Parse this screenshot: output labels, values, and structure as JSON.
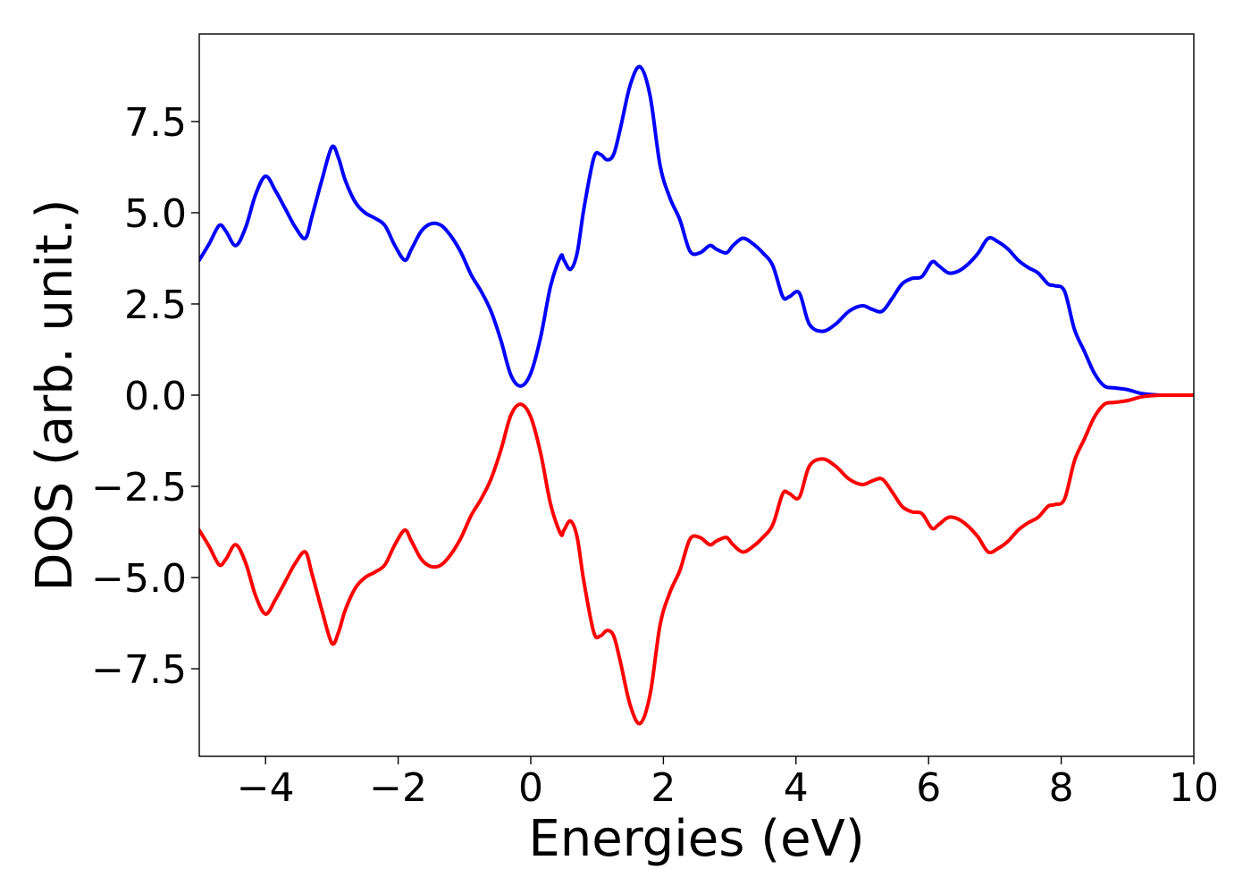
{
  "chart_data": {
    "type": "line",
    "title": "",
    "xlabel": "Energies (eV)",
    "ylabel": "DOS (arb. unit.)",
    "xlim": [
      -5,
      10
    ],
    "ylim": [
      -9.9,
      9.9
    ],
    "x_ticks": [
      -4,
      -2,
      0,
      2,
      4,
      6,
      8,
      10
    ],
    "x_tick_labels": [
      "−4",
      "−2",
      "0",
      "2",
      "4",
      "6",
      "8",
      "10"
    ],
    "y_ticks": [
      -7.5,
      -5.0,
      -2.5,
      0.0,
      2.5,
      5.0,
      7.5
    ],
    "y_tick_labels": [
      "−7.5",
      "−5.0",
      "−2.5",
      "0.0",
      "2.5",
      "5.0",
      "7.5"
    ],
    "grid": false,
    "legend": "none",
    "series": [
      {
        "color": "#0000ff",
        "x": [
          -5.0,
          -4.85,
          -4.7,
          -4.6,
          -4.45,
          -4.3,
          -4.15,
          -4.0,
          -3.85,
          -3.7,
          -3.55,
          -3.4,
          -3.3,
          -3.15,
          -3.0,
          -2.9,
          -2.8,
          -2.65,
          -2.5,
          -2.35,
          -2.2,
          -2.05,
          -1.9,
          -1.8,
          -1.65,
          -1.5,
          -1.35,
          -1.2,
          -1.05,
          -0.9,
          -0.75,
          -0.6,
          -0.45,
          -0.3,
          -0.15,
          0.0,
          0.15,
          0.3,
          0.45,
          0.5,
          0.6,
          0.7,
          0.8,
          0.95,
          1.05,
          1.15,
          1.25,
          1.35,
          1.5,
          1.65,
          1.8,
          1.95,
          2.1,
          2.25,
          2.4,
          2.55,
          2.7,
          2.8,
          2.95,
          3.05,
          3.2,
          3.35,
          3.5,
          3.65,
          3.8,
          3.9,
          4.05,
          4.2,
          4.4,
          4.6,
          4.8,
          5.0,
          5.15,
          5.3,
          5.45,
          5.6,
          5.75,
          5.9,
          6.05,
          6.15,
          6.3,
          6.45,
          6.6,
          6.75,
          6.9,
          7.05,
          7.2,
          7.35,
          7.5,
          7.65,
          7.8,
          7.9,
          8.05,
          8.2,
          8.35,
          8.5,
          8.65,
          8.8,
          9.0,
          9.2,
          9.4,
          9.6,
          9.8,
          10.0
        ],
        "y": [
          3.7,
          4.15,
          4.65,
          4.5,
          4.1,
          4.6,
          5.5,
          6.0,
          5.6,
          5.1,
          4.6,
          4.3,
          4.9,
          5.9,
          6.8,
          6.5,
          5.9,
          5.3,
          5.0,
          4.85,
          4.65,
          4.1,
          3.7,
          4.0,
          4.5,
          4.7,
          4.65,
          4.35,
          3.9,
          3.3,
          2.85,
          2.3,
          1.5,
          0.55,
          0.25,
          0.6,
          1.6,
          3.0,
          3.8,
          3.7,
          3.45,
          3.9,
          5.1,
          6.5,
          6.6,
          6.45,
          6.6,
          7.3,
          8.5,
          9.0,
          8.2,
          6.3,
          5.4,
          4.8,
          3.95,
          3.9,
          4.1,
          4.0,
          3.9,
          4.1,
          4.3,
          4.15,
          3.9,
          3.55,
          2.7,
          2.7,
          2.8,
          1.95,
          1.75,
          1.95,
          2.3,
          2.45,
          2.35,
          2.3,
          2.65,
          3.05,
          3.2,
          3.25,
          3.65,
          3.55,
          3.35,
          3.4,
          3.6,
          3.9,
          4.3,
          4.2,
          4.0,
          3.7,
          3.5,
          3.35,
          3.05,
          3.0,
          2.85,
          1.8,
          1.2,
          0.6,
          0.25,
          0.2,
          0.15,
          0.05,
          0.01,
          0.0,
          0.0,
          0.0
        ]
      },
      {
        "color": "#ff0000",
        "x": [
          -5.0,
          -4.85,
          -4.7,
          -4.6,
          -4.45,
          -4.3,
          -4.15,
          -4.0,
          -3.85,
          -3.7,
          -3.55,
          -3.4,
          -3.3,
          -3.15,
          -3.0,
          -2.9,
          -2.8,
          -2.65,
          -2.5,
          -2.35,
          -2.2,
          -2.05,
          -1.9,
          -1.8,
          -1.65,
          -1.5,
          -1.35,
          -1.2,
          -1.05,
          -0.9,
          -0.75,
          -0.6,
          -0.45,
          -0.3,
          -0.15,
          0.0,
          0.15,
          0.3,
          0.45,
          0.5,
          0.6,
          0.7,
          0.8,
          0.95,
          1.05,
          1.15,
          1.25,
          1.35,
          1.5,
          1.65,
          1.8,
          1.95,
          2.1,
          2.25,
          2.4,
          2.55,
          2.7,
          2.8,
          2.95,
          3.05,
          3.2,
          3.35,
          3.5,
          3.65,
          3.8,
          3.9,
          4.05,
          4.2,
          4.4,
          4.6,
          4.8,
          5.0,
          5.15,
          5.3,
          5.45,
          5.6,
          5.75,
          5.9,
          6.05,
          6.15,
          6.3,
          6.45,
          6.6,
          6.75,
          6.9,
          7.05,
          7.2,
          7.35,
          7.5,
          7.65,
          7.8,
          7.9,
          8.05,
          8.2,
          8.35,
          8.5,
          8.65,
          8.8,
          9.0,
          9.2,
          9.4,
          9.6,
          9.8,
          10.0
        ],
        "y": [
          -3.7,
          -4.15,
          -4.65,
          -4.5,
          -4.1,
          -4.6,
          -5.5,
          -6.0,
          -5.6,
          -5.1,
          -4.6,
          -4.3,
          -4.9,
          -5.9,
          -6.8,
          -6.5,
          -5.9,
          -5.3,
          -5.0,
          -4.85,
          -4.65,
          -4.1,
          -3.7,
          -4.0,
          -4.5,
          -4.7,
          -4.65,
          -4.35,
          -3.9,
          -3.3,
          -2.85,
          -2.3,
          -1.5,
          -0.55,
          -0.25,
          -0.6,
          -1.6,
          -3.0,
          -3.8,
          -3.7,
          -3.45,
          -3.9,
          -5.1,
          -6.5,
          -6.6,
          -6.45,
          -6.6,
          -7.3,
          -8.5,
          -9.0,
          -8.2,
          -6.3,
          -5.4,
          -4.8,
          -3.95,
          -3.9,
          -4.1,
          -4.0,
          -3.9,
          -4.1,
          -4.3,
          -4.15,
          -3.9,
          -3.55,
          -2.7,
          -2.7,
          -2.8,
          -1.95,
          -1.75,
          -1.95,
          -2.3,
          -2.45,
          -2.35,
          -2.3,
          -2.65,
          -3.05,
          -3.2,
          -3.25,
          -3.65,
          -3.55,
          -3.35,
          -3.4,
          -3.6,
          -3.9,
          -4.3,
          -4.2,
          -4.0,
          -3.7,
          -3.5,
          -3.35,
          -3.05,
          -3.0,
          -2.85,
          -1.8,
          -1.2,
          -0.6,
          -0.25,
          -0.2,
          -0.15,
          -0.05,
          -0.01,
          0.0,
          0.0,
          0.0
        ]
      }
    ]
  }
}
